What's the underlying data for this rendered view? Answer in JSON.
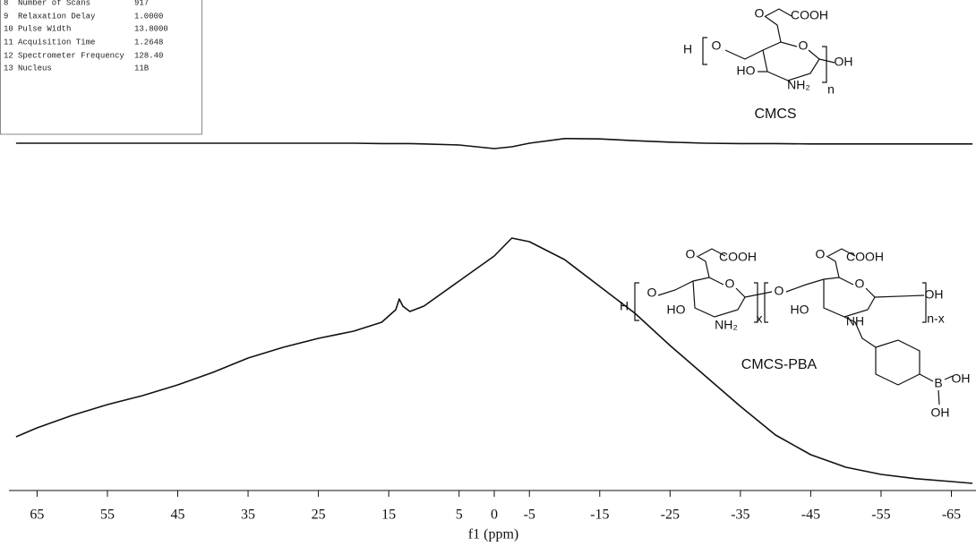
{
  "chart_data": {
    "type": "line",
    "x": [
      68,
      65,
      60,
      55,
      50,
      45,
      40,
      35,
      30,
      25,
      20,
      16,
      14,
      13.5,
      13,
      12,
      10,
      5,
      0,
      -2.5,
      -5,
      -10,
      -15,
      -20,
      -25,
      -30,
      -35,
      -40,
      -45,
      -50,
      -55,
      -60,
      -65,
      -68
    ],
    "series": [
      {
        "name": "CMCS",
        "color": "#111111",
        "values": [
          97.5,
          97.5,
          97.5,
          97.5,
          97.5,
          97.5,
          97.5,
          97.5,
          97.5,
          97.5,
          97.5,
          97.4,
          97.4,
          97.4,
          97.4,
          97.4,
          97.3,
          97,
          96,
          96.5,
          97.5,
          98.8,
          98.7,
          98.2,
          97.8,
          97.5,
          97.4,
          97.4,
          97.3,
          97.3,
          97.3,
          97.3,
          97.3,
          97.3
        ]
      },
      {
        "name": "CMCS-PBA",
        "color": "#111111",
        "values": [
          15.5,
          18,
          21.5,
          24.5,
          27,
          30,
          33.5,
          37.5,
          40.5,
          43,
          45,
          47.5,
          51,
          54,
          52,
          50.5,
          52,
          59,
          66,
          71,
          70,
          65,
          57.5,
          50,
          41,
          32.5,
          24,
          16,
          10.5,
          7,
          5,
          3.8,
          3,
          2.5
        ]
      }
    ],
    "xlabel": "f1 (ppm)",
    "xlim": [
      69,
      -68.5
    ],
    "xticks": [
      65,
      55,
      45,
      35,
      25,
      15,
      5,
      0,
      -5,
      -15,
      -25,
      -35,
      -45,
      -55,
      -65
    ],
    "ylim": [
      0,
      100
    ]
  },
  "table": {
    "rows": [
      [
        "8",
        "Number of Scans",
        "917"
      ],
      [
        "9",
        "Relaxation Delay",
        "1.0000"
      ],
      [
        "10",
        "Pulse Width",
        "13.8000"
      ],
      [
        "11",
        "Acquisition Time",
        "1.2648"
      ],
      [
        "12",
        "Spectrometer Frequency",
        "128.40"
      ],
      [
        "13",
        "Nucleus",
        "11B"
      ]
    ]
  },
  "structures": [
    {
      "labels": [
        "O",
        "COOH",
        "H",
        "O",
        "O",
        "HO",
        "NH₂",
        "OH",
        "n"
      ]
    },
    {
      "labels": [
        "O",
        "COOH",
        "O",
        "COOH",
        "H",
        "O",
        "HO",
        "O",
        "NH₂",
        "x",
        "O",
        "HO",
        "O",
        "NH",
        "OH",
        "n-x",
        "B",
        "OH",
        "OH"
      ]
    }
  ]
}
